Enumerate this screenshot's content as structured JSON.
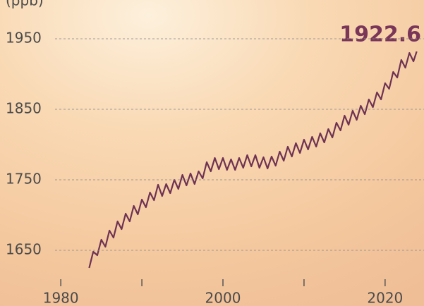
{
  "chart_data": {
    "type": "line",
    "y_label": "(ppb)",
    "annotation": "1922.6",
    "xlim": [
      1972.5,
      2024.8
    ],
    "xticks": [
      1980,
      2000,
      2020
    ],
    "xminor_ticks": [
      1990,
      2010
    ],
    "ylim": [
      1605,
      2005
    ],
    "yticks": [
      1650,
      1750,
      1850,
      1950
    ],
    "grid": true,
    "series": [
      {
        "color": "#6e3252",
        "x": [
          1983.5,
          1984,
          1984.5,
          1985,
          1985.5,
          1986,
          1986.5,
          1987,
          1987.5,
          1988,
          1988.5,
          1989,
          1989.5,
          1990,
          1990.5,
          1991,
          1991.5,
          1992,
          1992.5,
          1993,
          1993.5,
          1994,
          1994.5,
          1995,
          1995.5,
          1996,
          1996.5,
          1997,
          1997.5,
          1998,
          1998.5,
          1999,
          1999.5,
          2000,
          2000.5,
          2001,
          2001.5,
          2002,
          2002.5,
          2003,
          2003.5,
          2004,
          2004.5,
          2005,
          2005.5,
          2006,
          2006.5,
          2007,
          2007.5,
          2008,
          2008.5,
          2009,
          2009.5,
          2010,
          2010.5,
          2011,
          2011.5,
          2012,
          2012.5,
          2013,
          2013.5,
          2014,
          2014.5,
          2015,
          2015.5,
          2016,
          2016.5,
          2017,
          2017.5,
          2018,
          2018.5,
          2019,
          2019.5,
          2020,
          2020.5,
          2021,
          2021.5,
          2022,
          2022.5,
          2023,
          2023.5,
          2023.9
        ],
        "values": [
          1625,
          1648,
          1643,
          1665,
          1655,
          1678,
          1668,
          1691,
          1680,
          1702,
          1691,
          1713,
          1701,
          1722,
          1711,
          1732,
          1721,
          1743,
          1727,
          1744,
          1731,
          1750,
          1737,
          1757,
          1742,
          1759,
          1744,
          1762,
          1752,
          1775,
          1762,
          1781,
          1765,
          1781,
          1764,
          1779,
          1764,
          1781,
          1767,
          1785,
          1769,
          1785,
          1767,
          1782,
          1766,
          1783,
          1770,
          1790,
          1777,
          1797,
          1783,
          1802,
          1788,
          1807,
          1793,
          1811,
          1797,
          1816,
          1803,
          1822,
          1810,
          1831,
          1820,
          1841,
          1828,
          1848,
          1835,
          1855,
          1843,
          1864,
          1853,
          1874,
          1864,
          1887,
          1879,
          1903,
          1895,
          1920,
          1909,
          1930,
          1918,
          1932
        ]
      }
    ]
  }
}
